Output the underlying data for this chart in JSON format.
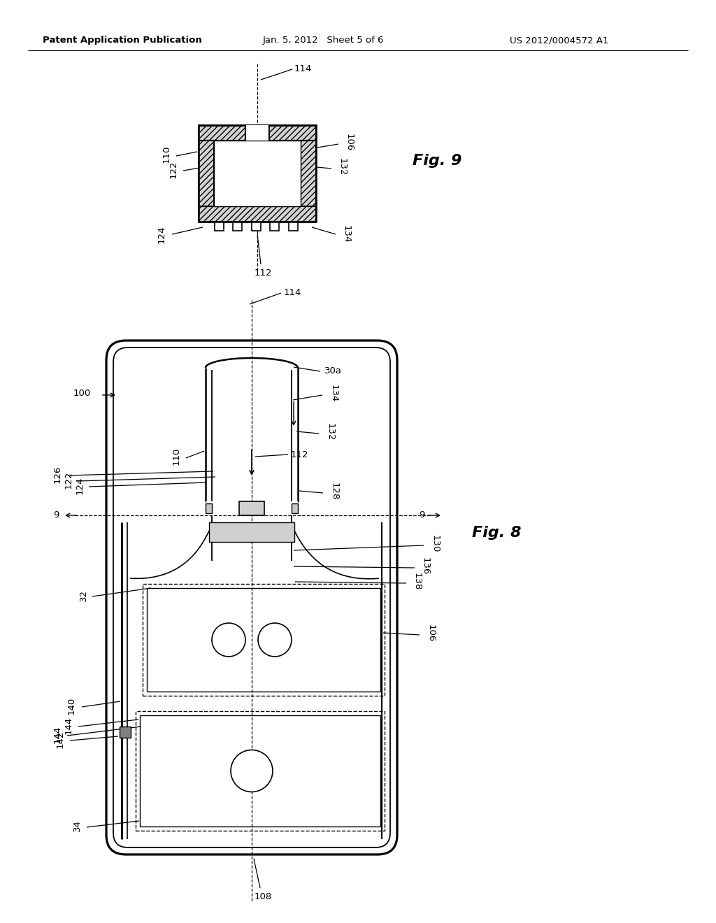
{
  "bg_color": "#ffffff",
  "header_left": "Patent Application Publication",
  "header_mid": "Jan. 5, 2012   Sheet 5 of 6",
  "header_right": "US 2012/0004572 A1",
  "fig8_label": "Fig. 8",
  "fig9_label": "Fig. 9"
}
